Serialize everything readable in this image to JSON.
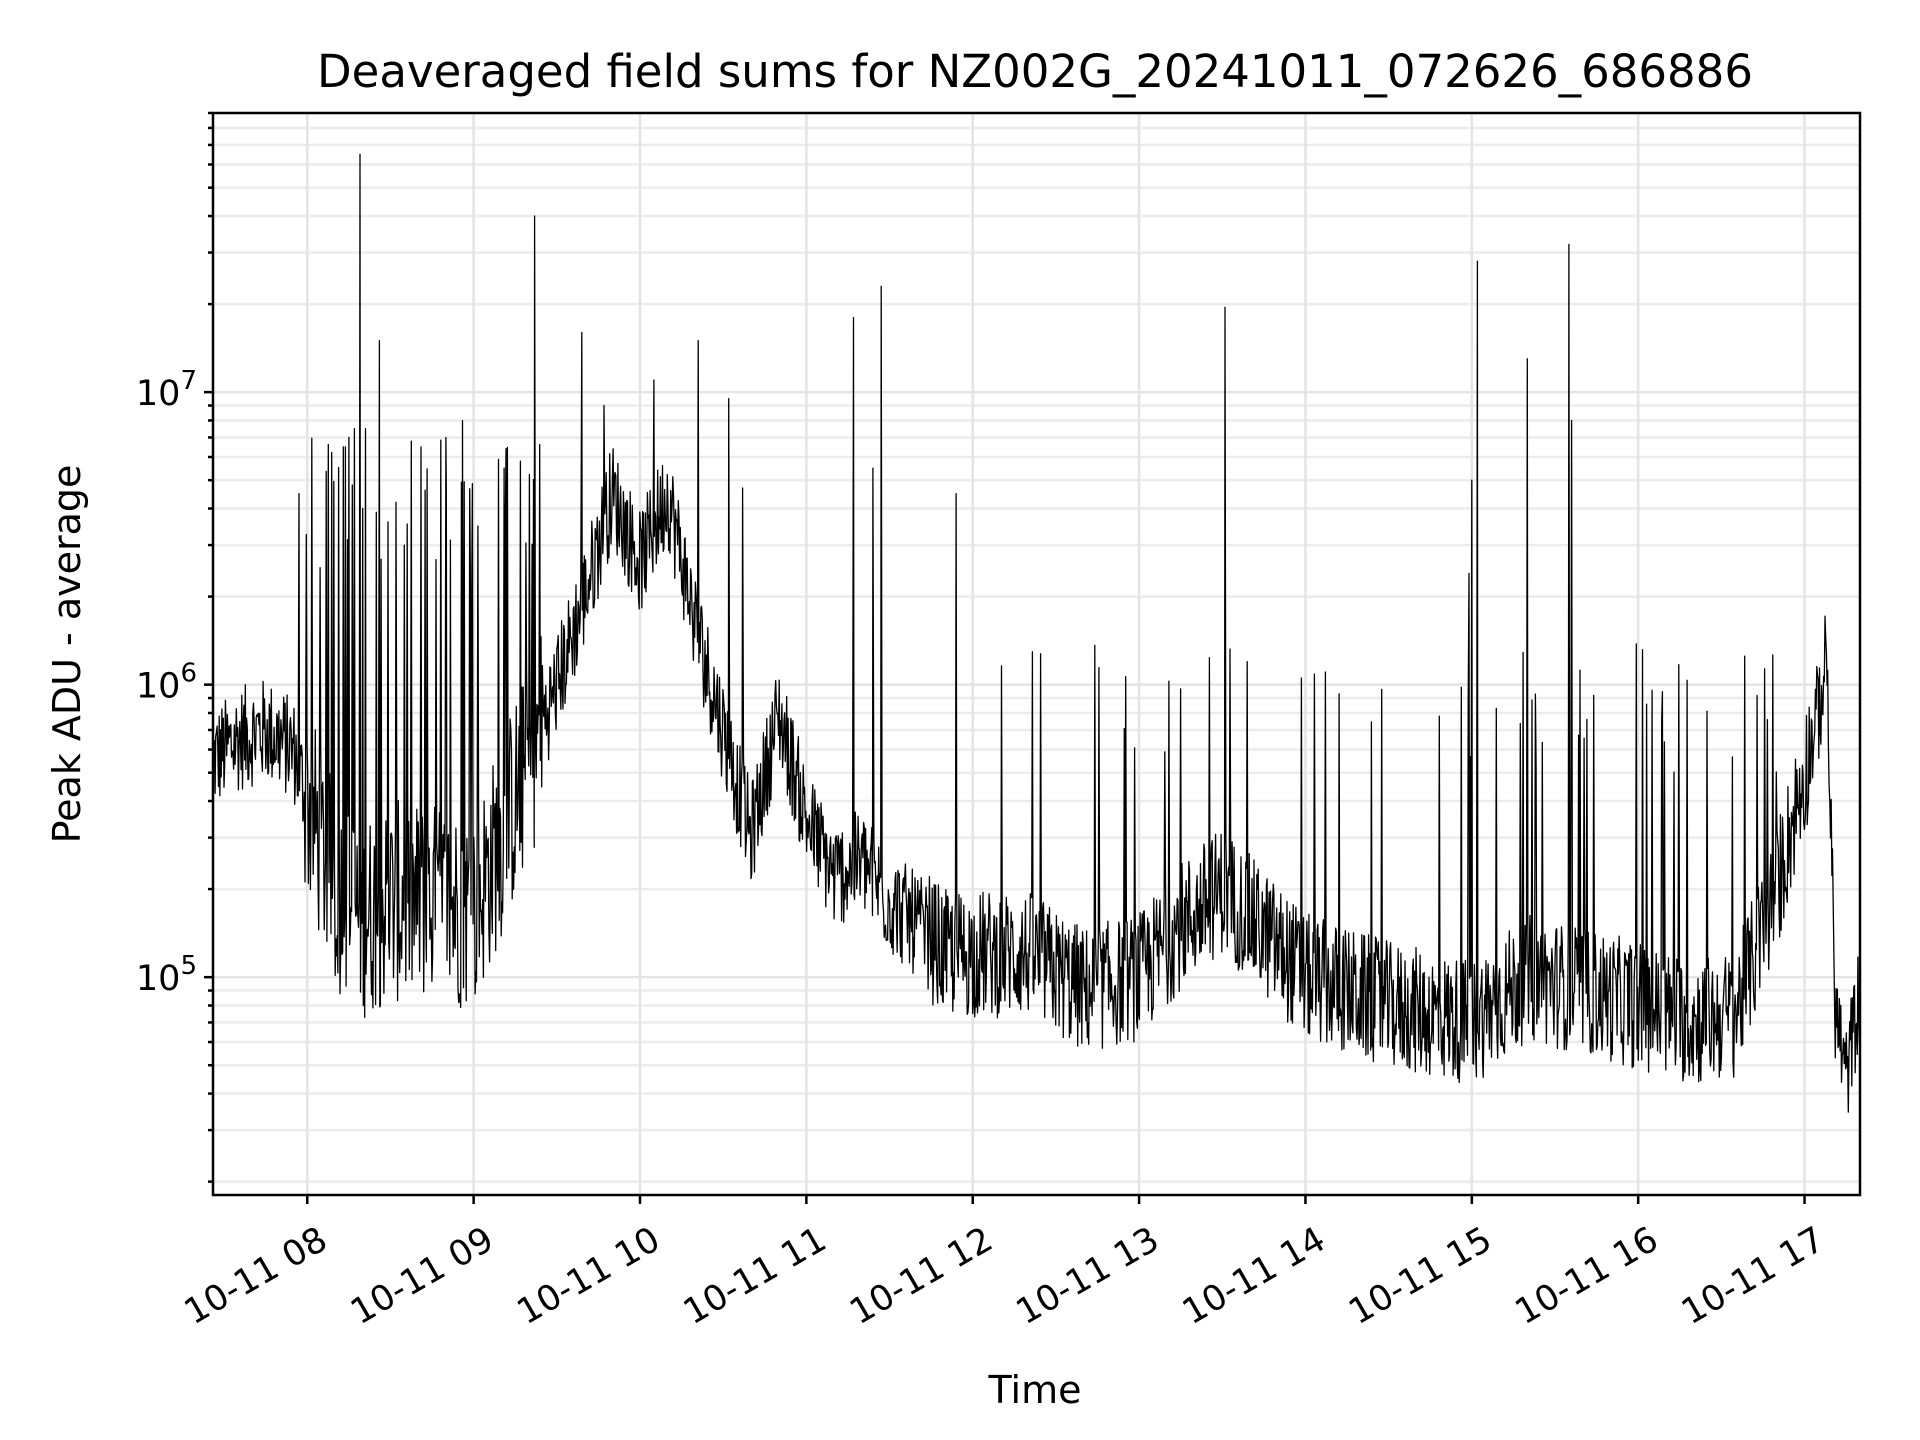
{
  "chart_data": {
    "type": "line",
    "title": "Deaveraged field sums for NZ002G_20241011_072626_686886",
    "xlabel": "Time",
    "ylabel": "Peak ADU - average",
    "xlim": [
      "2024-10-11 07:26",
      "2024-10-11 17:20"
    ],
    "ylim": [
      18000,
      90000000
    ],
    "yscale": "log",
    "grid": "both",
    "x_tick_labels": [
      "10-11 08",
      "10-11 09",
      "10-11 10",
      "10-11 11",
      "10-11 12",
      "10-11 13",
      "10-11 14",
      "10-11 15",
      "10-11 16",
      "10-11 17"
    ],
    "x_ticks": [
      "2024-10-11 08:00",
      "2024-10-11 09:00",
      "2024-10-11 10:00",
      "2024-10-11 11:00",
      "2024-10-11 12:00",
      "2024-10-11 13:00",
      "2024-10-11 14:00",
      "2024-10-11 15:00",
      "2024-10-11 16:00",
      "2024-10-11 17:00"
    ],
    "y_ticks": [
      {
        "value": 100000,
        "base": "10",
        "exp": "5"
      },
      {
        "value": 1000000,
        "base": "10",
        "exp": "6"
      },
      {
        "value": 10000000,
        "base": "10",
        "exp": "7"
      }
    ],
    "series": [
      {
        "baseline": {
          "x": [
            "2024-10-11 07:26",
            "2024-10-11 07:35",
            "2024-10-11 07:45",
            "2024-10-11 07:55",
            "2024-10-11 08:00",
            "2024-10-11 08:10",
            "2024-10-11 08:20",
            "2024-10-11 08:30",
            "2024-10-11 08:45",
            "2024-10-11 09:00",
            "2024-10-11 09:10",
            "2024-10-11 09:20",
            "2024-10-11 09:30",
            "2024-10-11 09:40",
            "2024-10-11 09:50",
            "2024-10-11 10:00",
            "2024-10-11 10:10",
            "2024-10-11 10:20",
            "2024-10-11 10:30",
            "2024-10-11 10:40",
            "2024-10-11 10:50",
            "2024-10-11 11:00",
            "2024-10-11 11:10",
            "2024-10-11 11:20",
            "2024-10-11 11:30",
            "2024-10-11 11:40",
            "2024-10-11 11:50",
            "2024-10-11 12:00",
            "2024-10-11 12:20",
            "2024-10-11 12:40",
            "2024-10-11 13:00",
            "2024-10-11 13:15",
            "2024-10-11 13:30",
            "2024-10-11 14:00",
            "2024-10-11 14:30",
            "2024-10-11 15:00",
            "2024-10-11 15:20",
            "2024-10-11 15:40",
            "2024-10-11 16:00",
            "2024-10-11 16:20",
            "2024-10-11 16:35",
            "2024-10-11 16:50",
            "2024-10-11 17:00",
            "2024-10-11 17:06",
            "2024-10-11 17:08",
            "2024-10-11 17:11",
            "2024-10-11 17:15",
            "2024-10-11 17:20"
          ],
          "y": [
            550000,
            650000,
            700000,
            600000,
            400000,
            200000,
            160000,
            180000,
            180000,
            170000,
            300000,
            550000,
            1000000,
            2000000,
            4500000,
            2600000,
            4500000,
            1600000,
            700000,
            300000,
            800000,
            350000,
            220000,
            250000,
            180000,
            150000,
            120000,
            120000,
            120000,
            90000,
            100000,
            150000,
            200000,
            100000,
            80000,
            70000,
            100000,
            90000,
            80000,
            70000,
            75000,
            200000,
            500000,
            900000,
            1300000,
            80000,
            45000,
            90000
          ]
        },
        "spikes": {
          "x": [
            "2024-10-11 07:57",
            "2024-10-11 08:13",
            "2024-10-11 08:15",
            "2024-10-11 08:17",
            "2024-10-11 08:19",
            "2024-10-11 08:20",
            "2024-10-11 08:21",
            "2024-10-11 08:26",
            "2024-10-11 08:32",
            "2024-10-11 08:35",
            "2024-10-11 08:41",
            "2024-10-11 08:50",
            "2024-10-11 08:56",
            "2024-10-11 09:11",
            "2024-10-11 09:22",
            "2024-10-11 09:39",
            "2024-10-11 09:47",
            "2024-10-11 10:05",
            "2024-10-11 10:21",
            "2024-10-11 10:32",
            "2024-10-11 10:37",
            "2024-10-11 11:17",
            "2024-10-11 11:24",
            "2024-10-11 11:27",
            "2024-10-11 11:54",
            "2024-10-11 13:31",
            "2024-10-11 14:59",
            "2024-10-11 15:00",
            "2024-10-11 15:02",
            "2024-10-11 15:20",
            "2024-10-11 15:35",
            "2024-10-11 15:36"
          ],
          "y": [
            4500000,
            6500000,
            7000000,
            7500000,
            65000000,
            4000000,
            7500000,
            15000000,
            4200000,
            3000000,
            6500000,
            7000000,
            8000000,
            5500000,
            40000000,
            16000000,
            9000000,
            11000000,
            15000000,
            9500000,
            4700000,
            18000000,
            5500000,
            23000000,
            4500000,
            19500000,
            2400000,
            5000000,
            28000000,
            13000000,
            32000000,
            8000000
          ]
        }
      }
    ]
  }
}
